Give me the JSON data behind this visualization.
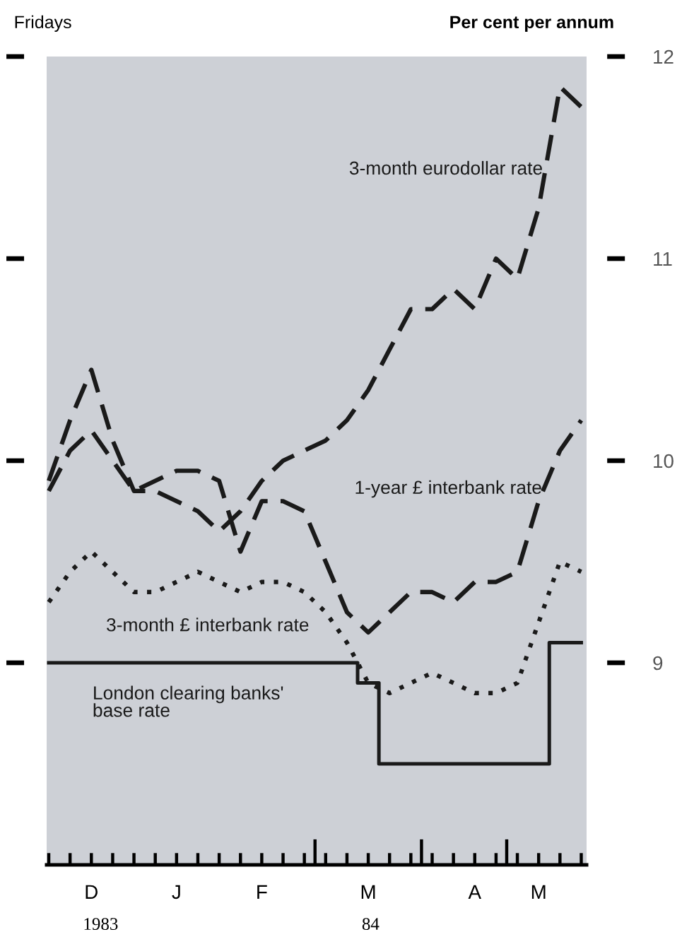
{
  "chart_data": {
    "type": "line",
    "xlabel": "Fridays",
    "ylabel": "Per cent per annum",
    "categories": [
      null,
      null,
      "D",
      null,
      null,
      null,
      "J",
      null,
      null,
      null,
      "F",
      null,
      null,
      null,
      null,
      "M",
      null,
      null,
      null,
      null,
      "A",
      null,
      null,
      "M",
      null,
      null
    ],
    "series": [
      {
        "name": "3-month eurodollar rate",
        "color": "#1a1a1a",
        "line_style": "dashed",
        "values": [
          9.9,
          10.2,
          10.45,
          10.1,
          9.85,
          9.85,
          9.8,
          9.75,
          9.65,
          9.75,
          9.9,
          10.0,
          10.05,
          10.1,
          10.2,
          10.35,
          10.55,
          10.75,
          10.75,
          10.85,
          10.75,
          11.0,
          10.9,
          11.25,
          11.85,
          11.75
        ]
      },
      {
        "name": "1-year £ interbank rate",
        "color": "#1a1a1a",
        "line_style": "dashed",
        "values": [
          9.85,
          10.05,
          10.15,
          10.0,
          9.85,
          9.9,
          9.95,
          9.95,
          9.9,
          9.55,
          9.8,
          9.8,
          9.75,
          9.5,
          9.25,
          9.15,
          9.25,
          9.35,
          9.35,
          9.3,
          9.4,
          9.4,
          9.45,
          9.8,
          10.05,
          10.2
        ]
      },
      {
        "name": "3-month £ interbank rate",
        "color": "#1a1a1a",
        "line_style": "dotted",
        "values": [
          9.3,
          9.45,
          9.55,
          9.45,
          9.35,
          9.35,
          9.4,
          9.45,
          9.4,
          9.35,
          9.4,
          9.4,
          9.35,
          9.25,
          9.1,
          8.9,
          8.85,
          8.9,
          8.95,
          8.9,
          8.85,
          8.85,
          8.9,
          9.2,
          9.5,
          9.45
        ]
      },
      {
        "name": "London clearing banks'\nbase rate",
        "color": "#1a1a1a",
        "type": "step",
        "line_style": "solid",
        "values": [
          9.0,
          9.0,
          9.0,
          9.0,
          9.0,
          9.0,
          9.0,
          9.0,
          9.0,
          9.0,
          9.0,
          9.0,
          9.0,
          9.0,
          9.0,
          8.9,
          8.5,
          8.5,
          8.5,
          8.5,
          8.5,
          8.5,
          8.5,
          8.5,
          9.1,
          9.1
        ]
      }
    ],
    "ylim": [
      8,
      12
    ],
    "yticks": [
      9,
      10,
      11,
      12
    ],
    "annotations": [
      "1983",
      "84"
    ],
    "grid": false,
    "legend": false,
    "marker": "none"
  }
}
